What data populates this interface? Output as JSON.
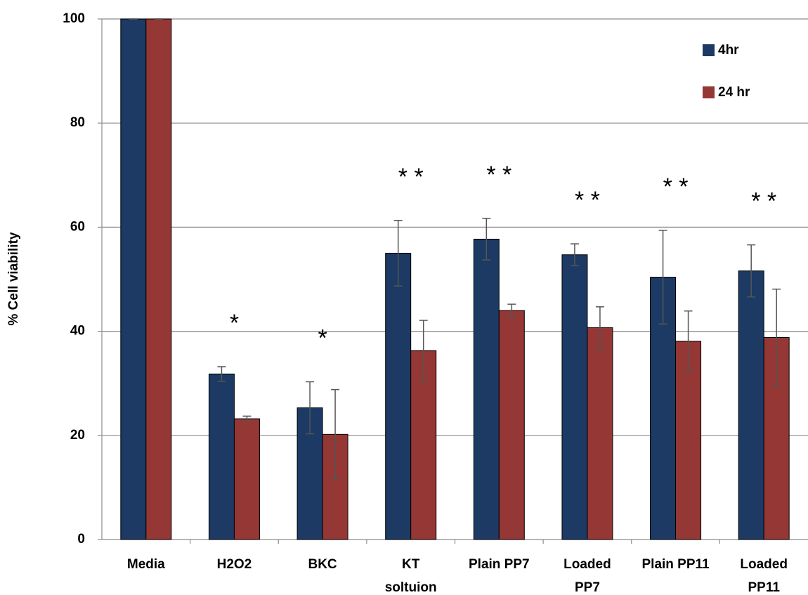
{
  "chart_data": {
    "type": "bar",
    "ylabel": "% Cell viability",
    "categories": [
      "Media",
      "H2O2",
      "BKC",
      "KT\nsoltuion",
      "Plain PP7",
      "Loaded\nPP7",
      "Plain PP11",
      "Loaded\nPP11"
    ],
    "series": [
      {
        "name": "4hr",
        "color": "#1c3a64",
        "values": [
          100,
          31.8,
          25.3,
          55,
          57.7,
          54.7,
          50.4,
          51.6
        ],
        "errors": [
          0,
          1.4,
          5,
          6.3,
          4,
          2.1,
          9,
          5
        ]
      },
      {
        "name": "24 hr",
        "color": "#953735",
        "values": [
          100,
          23.2,
          20.2,
          36.3,
          44,
          40.7,
          38.1,
          38.8
        ],
        "errors": [
          0,
          0.5,
          8.6,
          5.8,
          1.2,
          4,
          5.8,
          9.3
        ]
      }
    ],
    "annotations": [
      {
        "category": "H2O2",
        "text": "*"
      },
      {
        "category": "BKC",
        "text": "*"
      },
      {
        "category": "KT\nsoltuion",
        "text": "* *"
      },
      {
        "category": "Plain PP7",
        "text": "* *"
      },
      {
        "category": "Loaded\nPP7",
        "text": "* *"
      },
      {
        "category": "Plain PP11",
        "text": "* *"
      },
      {
        "category": "Loaded\nPP11",
        "text": "* *"
      }
    ],
    "ylim": [
      0,
      100
    ],
    "yticks": [
      0,
      20,
      40,
      60,
      80,
      100
    ],
    "grid": true,
    "legend": "upper right"
  }
}
